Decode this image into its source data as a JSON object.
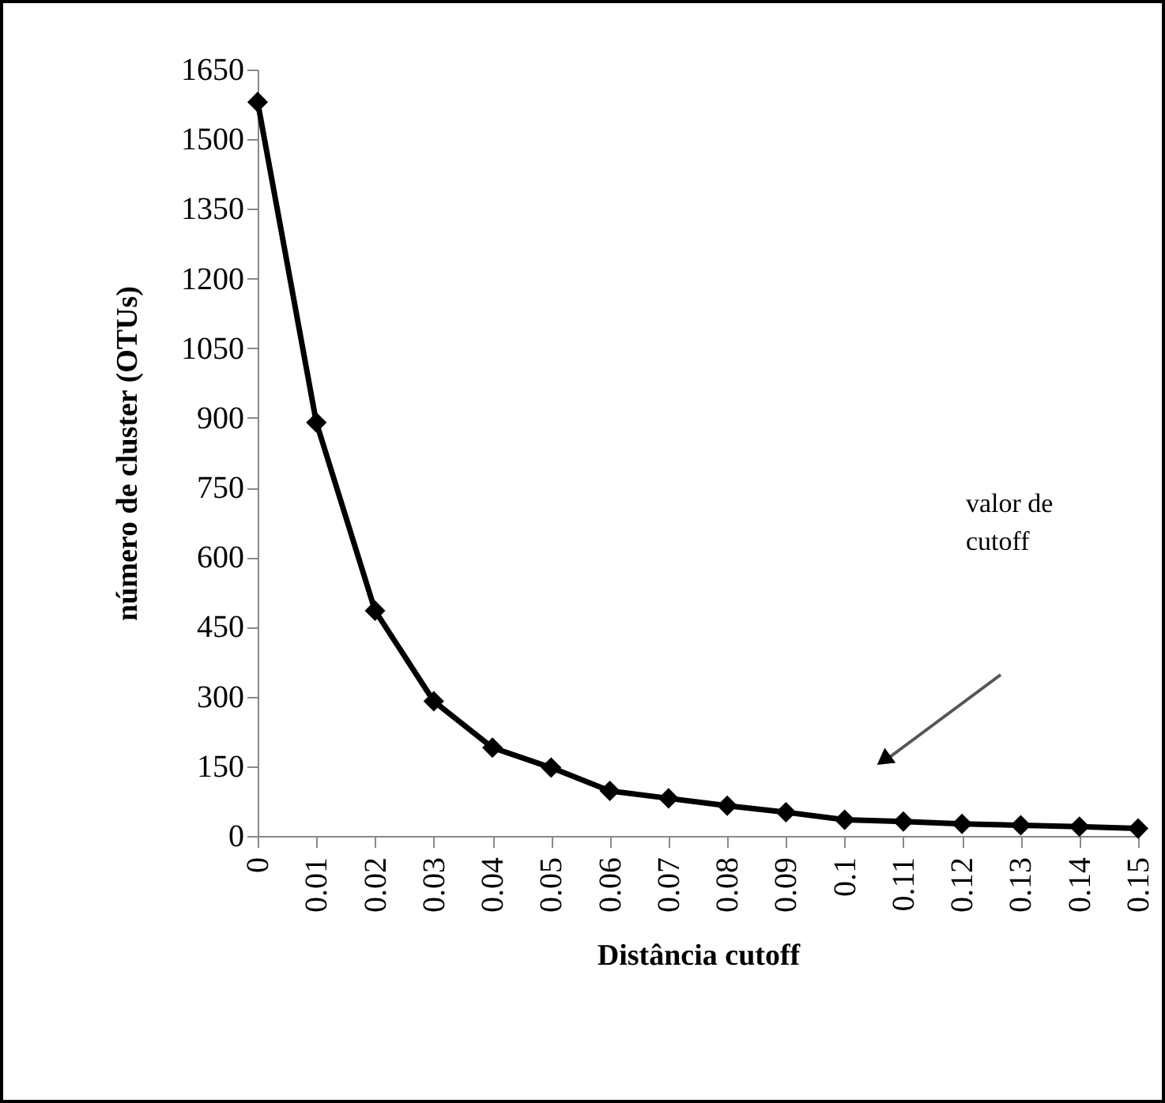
{
  "chart_data": {
    "type": "line",
    "xlabel": "Distância cutoff",
    "ylabel": "número de cluster (OTUs)",
    "categories": [
      "0",
      "0.01",
      "0.02",
      "0.03",
      "0.04",
      "0.05",
      "0.06",
      "0.07",
      "0.08",
      "0.09",
      "0.1",
      "0.11",
      "0.12",
      "0.13",
      "0.14",
      "0.15"
    ],
    "series": [
      {
        "color": "#000000",
        "values": [
          1580,
          890,
          485,
          290,
          190,
          147,
          97,
          81,
          65,
          51,
          35,
          31,
          26,
          23,
          20,
          16
        ]
      }
    ],
    "ylim": [
      0,
      1650
    ],
    "yticks": [
      0,
      150,
      300,
      450,
      600,
      750,
      900,
      1050,
      1200,
      1350,
      1500,
      1650
    ],
    "marker": "diamond",
    "line_style": "solid",
    "grid": false,
    "annotations": [
      "valor de\ncutoff"
    ]
  }
}
